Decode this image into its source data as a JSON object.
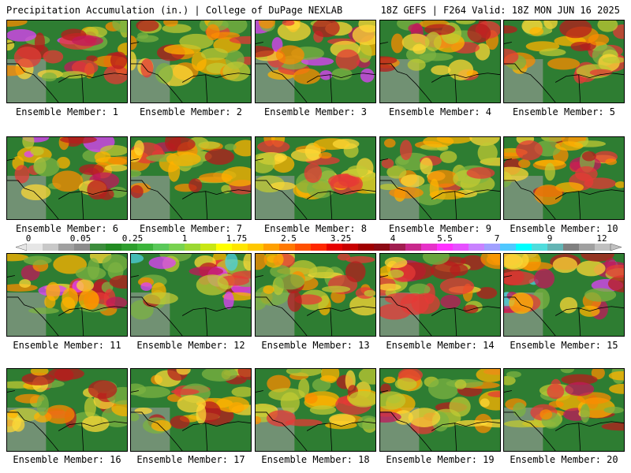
{
  "header": {
    "left": "Precipitation Accumulation (in.) | College of DuPage NEXLAB",
    "right": "18Z GEFS | F264 Valid: 18Z MON JUN 16 2025"
  },
  "colorbar": {
    "labels": [
      "0",
      "0.05",
      "0.25",
      "1",
      "1.75",
      "2.5",
      "3.25",
      "4",
      "5.5",
      "7",
      "9",
      "12"
    ],
    "colors": [
      "#e6e6e6",
      "#c8c8c8",
      "#a0a0a0",
      "#8c8c8c",
      "#3c8c3c",
      "#228b22",
      "#2e9e2e",
      "#3cb43c",
      "#5ac85a",
      "#78d250",
      "#9bd832",
      "#c8e614",
      "#ffff00",
      "#ffe600",
      "#ffc800",
      "#ffa000",
      "#ff7800",
      "#ff5000",
      "#ff2800",
      "#e60000",
      "#c80000",
      "#a00000",
      "#8c0a14",
      "#a01e50",
      "#c8288c",
      "#e632c8",
      "#ff32ff",
      "#e650ff",
      "#c882ff",
      "#a0a0ff",
      "#50c8ff",
      "#00ffff",
      "#50dcdc",
      "#64b4b4",
      "#808080",
      "#a0a0a0",
      "#c0c0c0"
    ]
  },
  "members": [
    {
      "label": "Ensemble Member: 1",
      "intensity": 0.7,
      "seed": 1
    },
    {
      "label": "Ensemble Member: 2",
      "intensity": 0.6,
      "seed": 2
    },
    {
      "label": "Ensemble Member: 3",
      "intensity": 0.75,
      "seed": 3
    },
    {
      "label": "Ensemble Member: 4",
      "intensity": 0.65,
      "seed": 4
    },
    {
      "label": "Ensemble Member: 5",
      "intensity": 0.55,
      "seed": 5
    },
    {
      "label": "Ensemble Member: 6",
      "intensity": 0.7,
      "seed": 6
    },
    {
      "label": "Ensemble Member: 7",
      "intensity": 0.6,
      "seed": 7
    },
    {
      "label": "Ensemble Member: 8",
      "intensity": 0.55,
      "seed": 8
    },
    {
      "label": "Ensemble Member: 9",
      "intensity": 0.5,
      "seed": 9
    },
    {
      "label": "Ensemble Member: 10",
      "intensity": 0.6,
      "seed": 10
    },
    {
      "label": "Ensemble Member: 11",
      "intensity": 0.75,
      "seed": 11
    },
    {
      "label": "Ensemble Member: 12",
      "intensity": 0.8,
      "seed": 12
    },
    {
      "label": "Ensemble Member: 13",
      "intensity": 0.6,
      "seed": 13
    },
    {
      "label": "Ensemble Member: 14",
      "intensity": 0.65,
      "seed": 14
    },
    {
      "label": "Ensemble Member: 15",
      "intensity": 0.8,
      "seed": 15
    },
    {
      "label": "Ensemble Member: 16",
      "intensity": 0.65,
      "seed": 16
    },
    {
      "label": "Ensemble Member: 17",
      "intensity": 0.6,
      "seed": 17
    },
    {
      "label": "Ensemble Member: 18",
      "intensity": 0.55,
      "seed": 18
    },
    {
      "label": "Ensemble Member: 19",
      "intensity": 0.65,
      "seed": 19
    },
    {
      "label": "Ensemble Member: 20",
      "intensity": 0.6,
      "seed": 20
    }
  ]
}
